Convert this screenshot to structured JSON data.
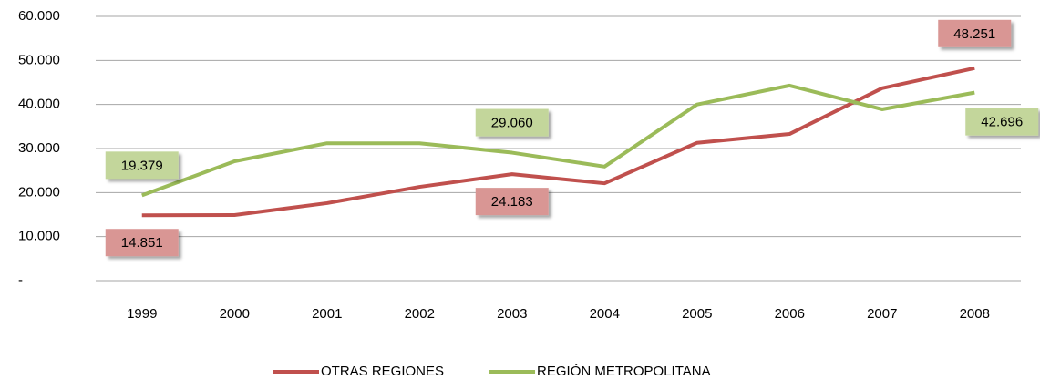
{
  "chart_data": {
    "type": "line",
    "categories": [
      "1999",
      "2000",
      "2001",
      "2002",
      "2003",
      "2004",
      "2005",
      "2006",
      "2007",
      "2008"
    ],
    "series": [
      {
        "name": "OTRAS REGIONES",
        "color": "#c0504d",
        "label_fill": "#d99694",
        "values": [
          14851,
          14900,
          17600,
          21300,
          24183,
          22100,
          31300,
          33300,
          43700,
          48251
        ],
        "value_labels": [
          "14.851",
          null,
          null,
          null,
          "24.183",
          null,
          null,
          null,
          null,
          "48.251"
        ]
      },
      {
        "name": "REGIÓN METROPOLITANA",
        "color": "#9bbb59",
        "label_fill": "#c3d69b",
        "values": [
          19379,
          27100,
          31200,
          31200,
          29060,
          25900,
          40000,
          44300,
          38900,
          42696
        ],
        "value_labels": [
          "19.379",
          null,
          null,
          null,
          "29.060",
          null,
          null,
          null,
          null,
          "42.696"
        ]
      }
    ],
    "ylim": [
      0,
      60000
    ],
    "yticks": [
      {
        "value": 0,
        "label": "-"
      },
      {
        "value": 10000,
        "label": "10.000"
      },
      {
        "value": 20000,
        "label": "20.000"
      },
      {
        "value": 30000,
        "label": "30.000"
      },
      {
        "value": 40000,
        "label": "40.000"
      },
      {
        "value": 50000,
        "label": "50.000"
      },
      {
        "value": 60000,
        "label": "60.000"
      }
    ],
    "grid": true,
    "legend": "bottom"
  }
}
